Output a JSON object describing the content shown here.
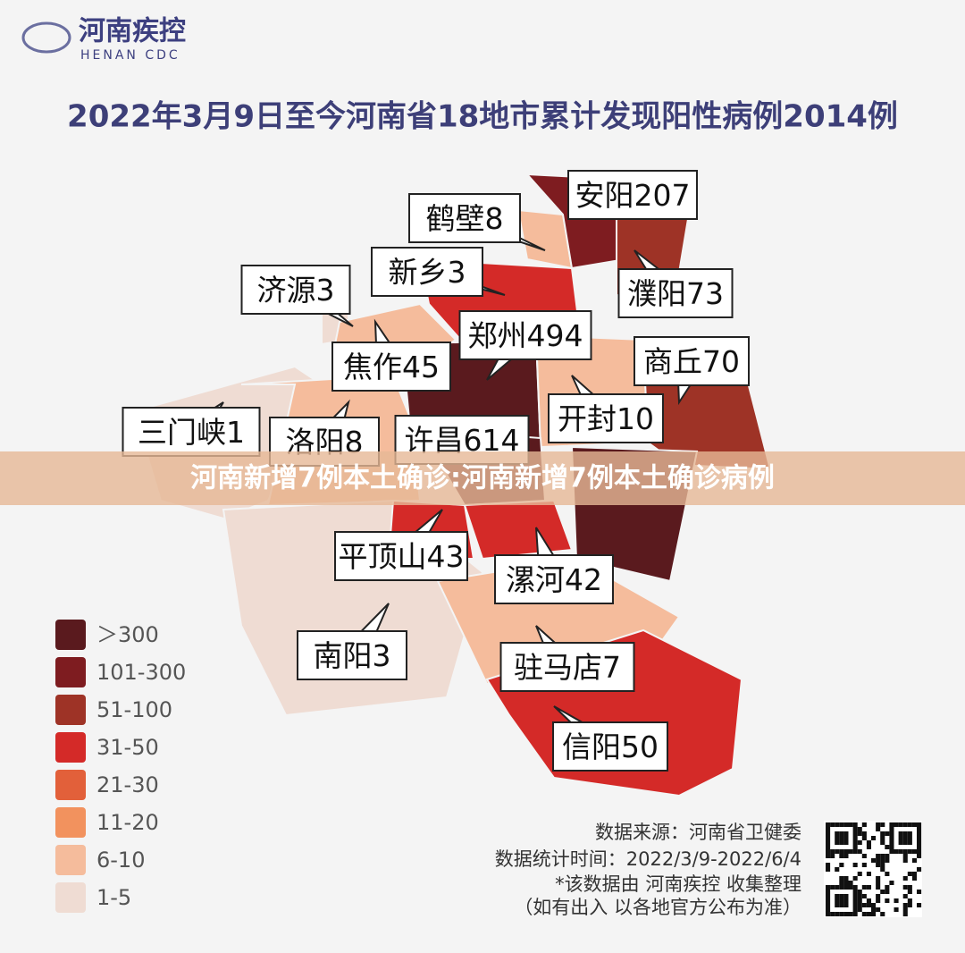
{
  "header": {
    "logo_text": "河南疾控",
    "logo_subtext": "HENAN CDC",
    "title": "2022年3月9日至今河南省18地市累计发现阳性病例2014例"
  },
  "regions": [
    {
      "name": "安阳",
      "cases": 207
    },
    {
      "name": "鹤壁",
      "cases": 8
    },
    {
      "name": "濮阳",
      "cases": 73
    },
    {
      "name": "新乡",
      "cases": 3
    },
    {
      "name": "济源",
      "cases": 3
    },
    {
      "name": "郑州",
      "cases": 494
    },
    {
      "name": "焦作",
      "cases": 45
    },
    {
      "name": "商丘",
      "cases": 70
    },
    {
      "name": "三门峡",
      "cases": 1
    },
    {
      "name": "开封",
      "cases": 10
    },
    {
      "name": "洛阳",
      "cases": 8
    },
    {
      "name": "许昌",
      "cases": 614
    },
    {
      "name": "平顶山",
      "cases": 43
    },
    {
      "name": "漯河",
      "cases": 42
    },
    {
      "name": "南阳",
      "cases": 3
    },
    {
      "name": "驻马店",
      "cases": 7
    },
    {
      "name": "信阳",
      "cases": 50
    }
  ],
  "legend": [
    {
      "label": "＞300",
      "color": "#5a1a1e"
    },
    {
      "label": "101-300",
      "color": "#7e1c20"
    },
    {
      "label": "51-100",
      "color": "#9e3326"
    },
    {
      "label": "31-50",
      "color": "#d42a28"
    },
    {
      "label": "21-30",
      "color": "#e2603a"
    },
    {
      "label": "11-20",
      "color": "#f2925e"
    },
    {
      "label": "6-10",
      "color": "#f5bc9c"
    },
    {
      "label": "1-5",
      "color": "#efdcd3"
    }
  ],
  "source": [
    "数据来源：河南省卫健委",
    "数据统计时间：2022/3/9-2022/6/4",
    "*该数据由 河南疾控 收集整理",
    "（如有出入  以各地官方公布为准）"
  ],
  "banner": "河南新增7例本土确诊:河南新增7例本土确诊病例"
}
